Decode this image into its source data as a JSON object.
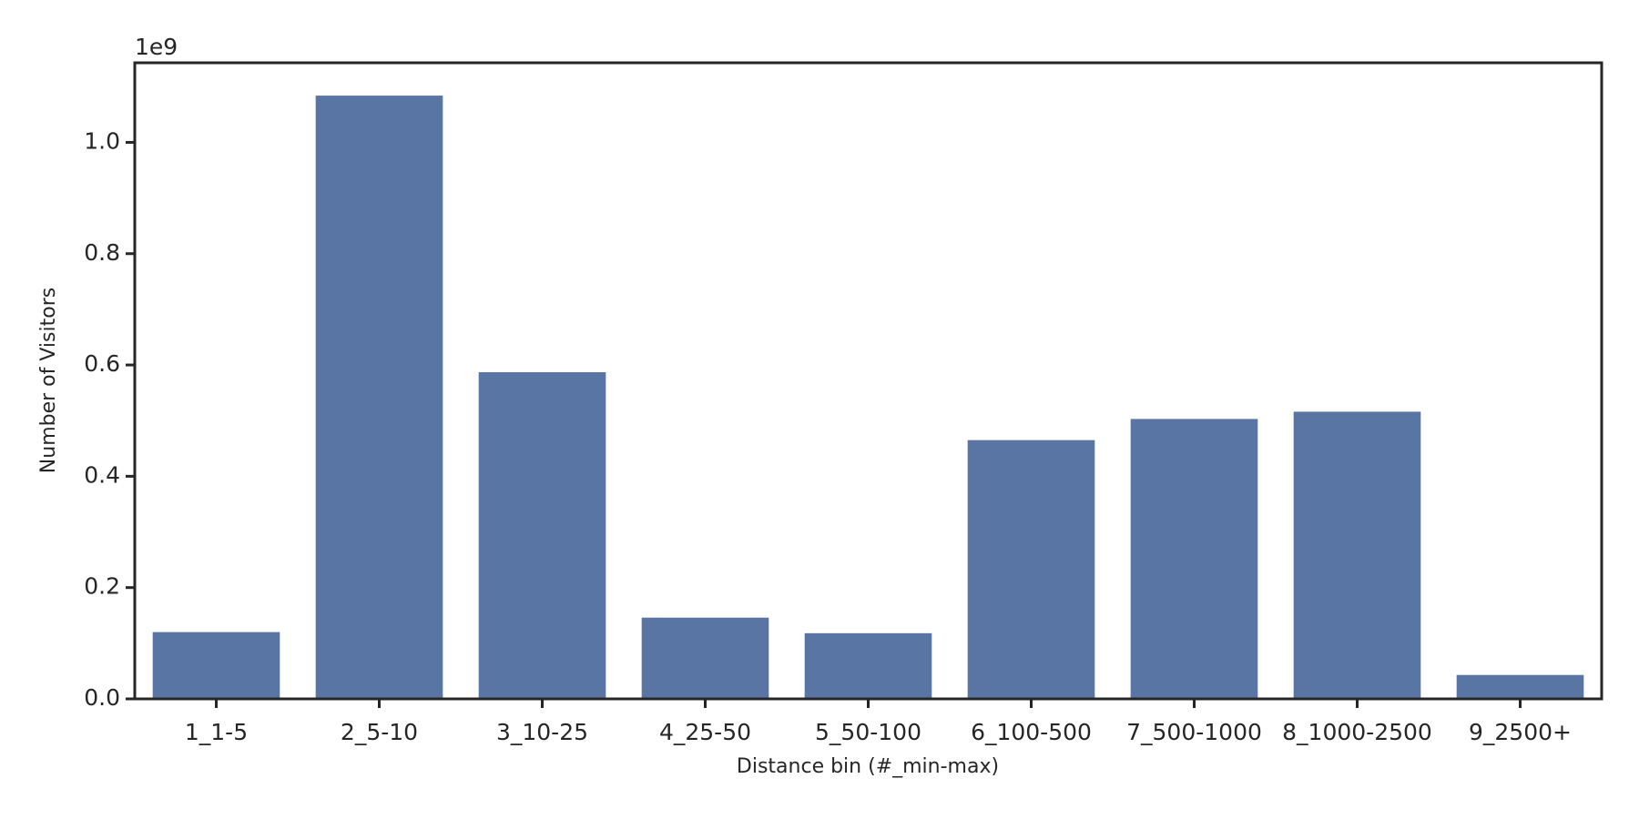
{
  "chart_data": {
    "type": "bar",
    "x_label": "Distance bin (#_min-max)",
    "y_label": "Number of Visitors",
    "y_offset_label": "1e9",
    "categories": [
      "1_1-5",
      "2_5-10",
      "3_10-25",
      "4_25-50",
      "5_50-100",
      "6_100-500",
      "7_500-1000",
      "8_1000-2500",
      "9_2500+"
    ],
    "values": [
      0.12,
      1.084,
      0.587,
      0.146,
      0.118,
      0.465,
      0.503,
      0.516,
      0.043
    ],
    "color": "#5975a4",
    "ylim": [
      0,
      1.143
    ],
    "yticks": [
      {
        "value": 0,
        "label": "0.0"
      },
      0.2,
      0.4,
      0.6,
      0.8,
      {
        "value": 1,
        "label": "1.0"
      }
    ],
    "grid": false
  }
}
